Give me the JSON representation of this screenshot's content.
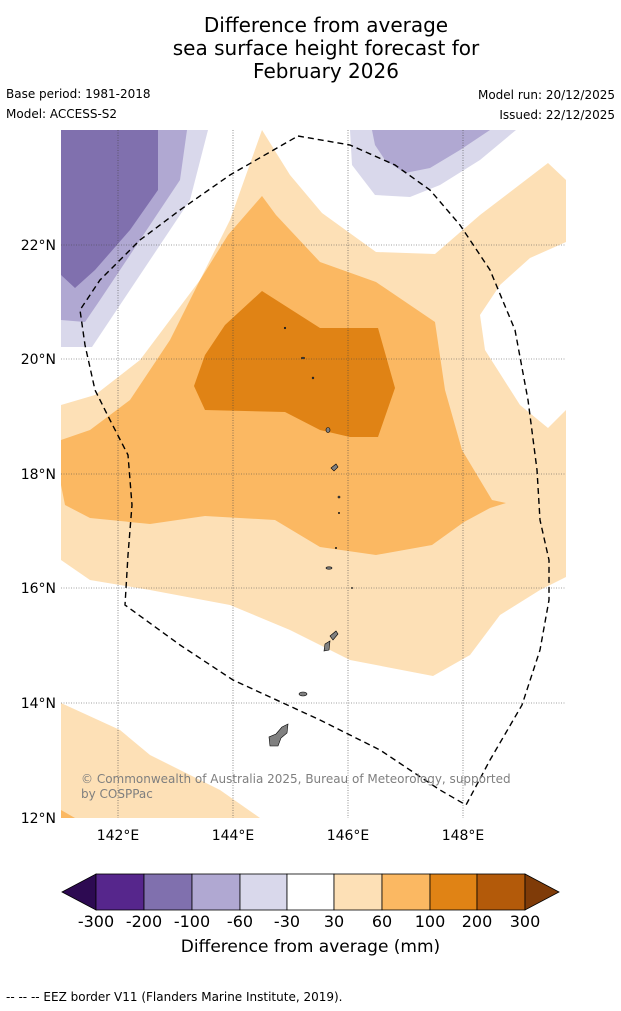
{
  "title": {
    "line1": "Difference from average",
    "line2": "sea surface height forecast for",
    "line3": "February 2026"
  },
  "meta": {
    "base_period": "Base period: 1981-2018",
    "model": "Model: ACCESS-S2",
    "model_run": "Model run: 20/12/2025",
    "issued": "Issued: 22/12/2025"
  },
  "map": {
    "lat_labels": [
      "22°N",
      "20°N",
      "18°N",
      "16°N",
      "14°N",
      "12°N"
    ],
    "lon_labels": [
      "142°E",
      "144°E",
      "146°E",
      "148°E"
    ],
    "copyright": "© Commonwealth of Australia 2025, Bureau of Meteorology, supported by COSPPac"
  },
  "colorbar": {
    "label": "Difference from average (mm)",
    "ticks": [
      "-300",
      "-200",
      "-100",
      "-60",
      "-30",
      "30",
      "60",
      "100",
      "200",
      "300"
    ],
    "colors": {
      "below_min": "#2d0a52",
      "neg_300_200": "#56268c",
      "neg_200_100": "#8070ae",
      "neg_100_60": "#b0a8d2",
      "neg_60_30": "#d9d8eb",
      "neutral": "#ffffff",
      "pos_30_60": "#fde0b6",
      "pos_60_100": "#fbb862",
      "pos_100_200": "#e08315",
      "pos_200_300": "#b35a0a",
      "above_max": "#7f3b08"
    }
  },
  "footnote": "--  --  -- EEZ border V11 (Flanders Marine Institute, 2019)."
}
